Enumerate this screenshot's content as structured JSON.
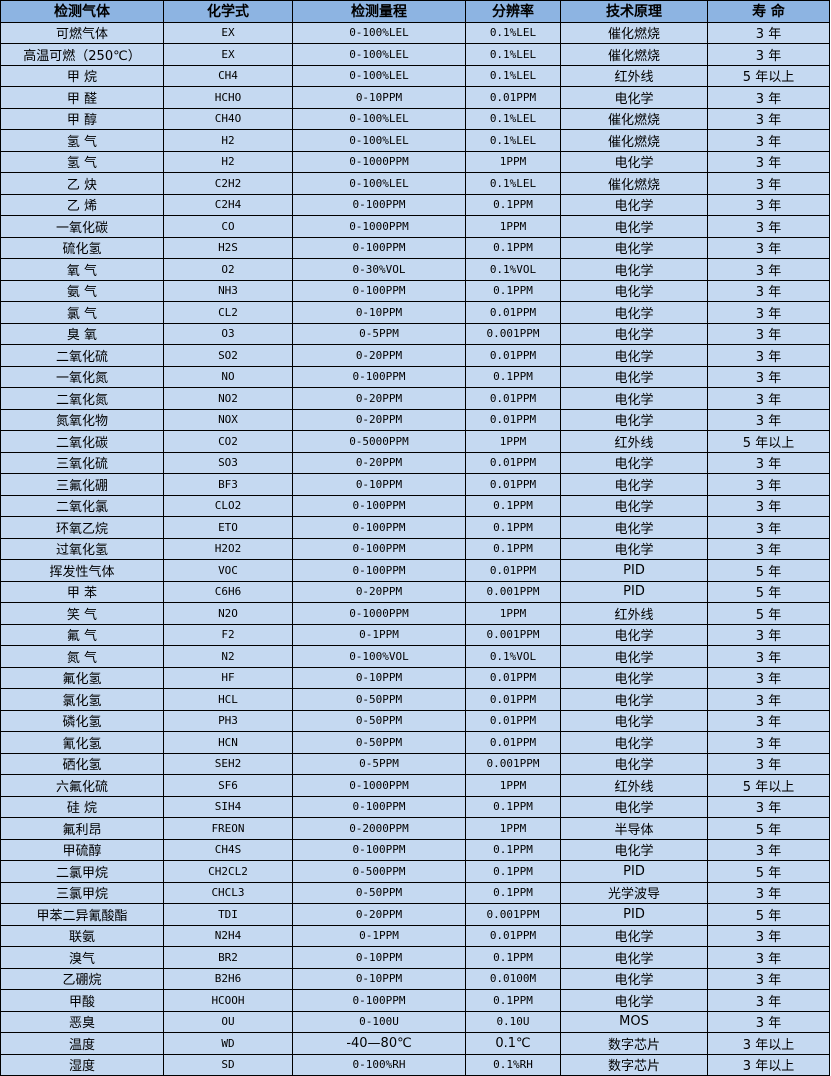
{
  "header": [
    "检测气体",
    "化学式",
    "检测量程",
    "分辨率",
    "技术原理",
    "寿 命"
  ],
  "rows": [
    [
      "可燃气体",
      "EX",
      "0-100%LEL",
      "0.1%LEL",
      "催化燃烧",
      "3 年"
    ],
    [
      "高温可燃（250℃）",
      "EX",
      "0-100%LEL",
      "0.1%LEL",
      "催化燃烧",
      "3 年"
    ],
    [
      "甲 烷",
      "CH4",
      "0-100%LEL",
      "0.1%LEL",
      "红外线",
      "5 年以上"
    ],
    [
      "甲 醛",
      "HCHO",
      "0-10PPM",
      "0.01PPM",
      "电化学",
      "3 年"
    ],
    [
      "甲 醇",
      "CH4O",
      "0-100%LEL",
      "0.1%LEL",
      "催化燃烧",
      "3 年"
    ],
    [
      "氢 气",
      "H2",
      "0-100%LEL",
      "0.1%LEL",
      "催化燃烧",
      "3 年"
    ],
    [
      "氢 气",
      "H2",
      "0-1000PPM",
      "1PPM",
      "电化学",
      "3 年"
    ],
    [
      "乙 炔",
      "C2H2",
      "0-100%LEL",
      "0.1%LEL",
      "催化燃烧",
      "3 年"
    ],
    [
      "乙 烯",
      "C2H4",
      "0-100PPM",
      "0.1PPM",
      "电化学",
      "3 年"
    ],
    [
      "一氧化碳",
      "CO",
      "0-1000PPM",
      "1PPM",
      "电化学",
      "3 年"
    ],
    [
      "硫化氢",
      "H2S",
      "0-100PPM",
      "0.1PPM",
      "电化学",
      "3 年"
    ],
    [
      "氧 气",
      "O2",
      "0-30%VOL",
      "0.1%VOL",
      "电化学",
      "3 年"
    ],
    [
      "氨 气",
      "NH3",
      "0-100PPM",
      "0.1PPM",
      "电化学",
      "3 年"
    ],
    [
      "氯 气",
      "CL2",
      "0-10PPM",
      "0.01PPM",
      "电化学",
      "3 年"
    ],
    [
      "臭 氧",
      "O3",
      "0-5PPM",
      "0.001PPM",
      "电化学",
      "3 年"
    ],
    [
      "二氧化硫",
      "SO2",
      "0-20PPM",
      "0.01PPM",
      "电化学",
      "3 年"
    ],
    [
      "一氧化氮",
      "NO",
      "0-100PPM",
      "0.1PPM",
      "电化学",
      "3 年"
    ],
    [
      "二氧化氮",
      "NO2",
      "0-20PPM",
      "0.01PPM",
      "电化学",
      "3 年"
    ],
    [
      "氮氧化物",
      "NOX",
      "0-20PPM",
      "0.01PPM",
      "电化学",
      "3 年"
    ],
    [
      "二氧化碳",
      "CO2",
      "0-5000PPM",
      "1PPM",
      "红外线",
      "5 年以上"
    ],
    [
      "三氧化硫",
      "SO3",
      "0-20PPM",
      "0.01PPM",
      "电化学",
      "3 年"
    ],
    [
      "三氟化硼",
      "BF3",
      "0-10PPM",
      "0.01PPM",
      "电化学",
      "3 年"
    ],
    [
      "二氧化氯",
      "CLO2",
      "0-100PPM",
      "0.1PPM",
      "电化学",
      "3 年"
    ],
    [
      "环氧乙烷",
      "ETO",
      "0-100PPM",
      "0.1PPM",
      "电化学",
      "3 年"
    ],
    [
      "过氧化氢",
      "H2O2",
      "0-100PPM",
      "0.1PPM",
      "电化学",
      "3 年"
    ],
    [
      "挥发性气体",
      "VOC",
      "0-100PPM",
      "0.01PPM",
      "PID",
      "5 年"
    ],
    [
      "甲 苯",
      "C6H6",
      "0-20PPM",
      "0.001PPM",
      "PID",
      "5 年"
    ],
    [
      "笑 气",
      "N2O",
      "0-1000PPM",
      "1PPM",
      "红外线",
      "5 年"
    ],
    [
      "氟 气",
      "F2",
      "0-1PPM",
      "0.001PPM",
      "电化学",
      "3 年"
    ],
    [
      "氮 气",
      "N2",
      "0-100%VOL",
      "0.1%VOL",
      "电化学",
      "3 年"
    ],
    [
      "氟化氢",
      "HF",
      "0-10PPM",
      "0.01PPM",
      "电化学",
      "3 年"
    ],
    [
      "氯化氢",
      "HCL",
      "0-50PPM",
      "0.01PPM",
      "电化学",
      "3 年"
    ],
    [
      "磷化氢",
      "PH3",
      "0-50PPM",
      "0.01PPM",
      "电化学",
      "3 年"
    ],
    [
      "氰化氢",
      "HCN",
      "0-50PPM",
      "0.01PPM",
      "电化学",
      "3 年"
    ],
    [
      "硒化氢",
      "SEH2",
      "0-5PPM",
      "0.001PPM",
      "电化学",
      "3 年"
    ],
    [
      "六氟化硫",
      "SF6",
      "0-1000PPM",
      "1PPM",
      "红外线",
      "5 年以上"
    ],
    [
      "硅 烷",
      "SIH4",
      "0-100PPM",
      "0.1PPM",
      "电化学",
      "3 年"
    ],
    [
      "氟利昂",
      "FREON",
      "0-2000PPM",
      "1PPM",
      "半导体",
      "5 年"
    ],
    [
      "甲硫醇",
      "CH4S",
      "0-100PPM",
      "0.1PPM",
      "电化学",
      "3 年"
    ],
    [
      "二氯甲烷",
      "CH2CL2",
      "0-500PPM",
      "0.1PPM",
      "PID",
      "5 年"
    ],
    [
      "三氯甲烷",
      "CHCL3",
      "0-50PPM",
      "0.1PPM",
      "光学波导",
      "3 年"
    ],
    [
      "甲苯二异氰酸酯",
      "TDI",
      "0-20PPM",
      "0.001PPM",
      "PID",
      "5 年"
    ],
    [
      "联氨",
      "N2H4",
      "0-1PPM",
      "0.01PPM",
      "电化学",
      "3 年"
    ],
    [
      "溴气",
      "BR2",
      "0-10PPM",
      "0.1PPM",
      "电化学",
      "3 年"
    ],
    [
      "乙硼烷",
      "B2H6",
      "0-10PPM",
      "0.0100M",
      "电化学",
      "3 年"
    ],
    [
      "甲酸",
      "HCOOH",
      "0-100PPM",
      "0.1PPM",
      "电化学",
      "3 年"
    ],
    [
      "恶臭",
      "OU",
      "0-100U",
      "0.10U",
      "MOS",
      "3 年"
    ],
    [
      "温度",
      "WD",
      "-40—80℃",
      "0.1℃",
      "数字芯片",
      "3 年以上"
    ],
    [
      "湿度",
      "SD",
      "0-100%RH",
      "0.1%RH",
      "数字芯片",
      "3 年以上"
    ]
  ],
  "colors": {
    "header_bg": "#8db4e2",
    "body_bg": "#c5d9f1"
  }
}
